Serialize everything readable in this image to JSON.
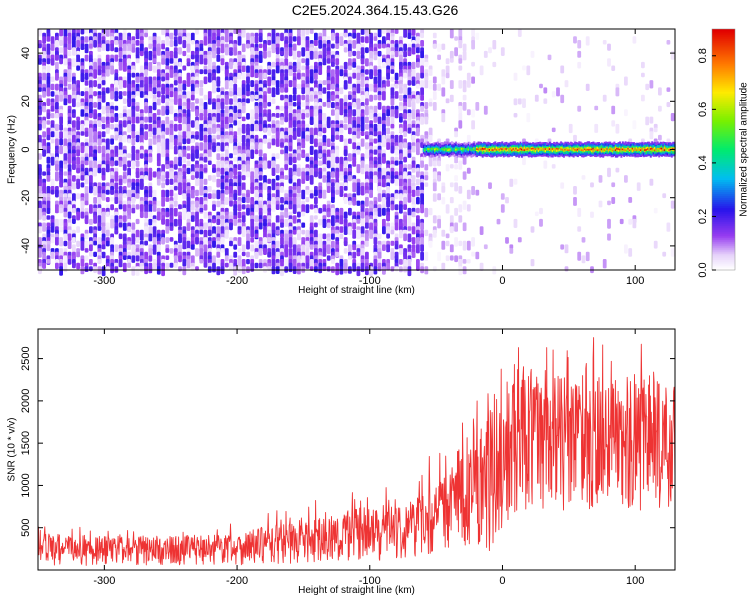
{
  "title": "C2E5.2024.364.15.43.G26",
  "colors": {
    "snr_line": "#ee3333",
    "spectrogram_noise": "#7a24e0",
    "axis": "#000000",
    "background": "#ffffff"
  },
  "chart_data": [
    {
      "type": "heatmap",
      "title": "C2E5.2024.364.15.43.G26",
      "xlabel": "Height of straight line (km)",
      "ylabel": "Frequency (Hz)",
      "xlim": [
        -350,
        130
      ],
      "ylim": [
        -50,
        50
      ],
      "x_ticks": [
        -300,
        -200,
        -100,
        0,
        100
      ],
      "x_tick_labels": [
        "-300",
        "-200",
        "-100",
        "0",
        "100"
      ],
      "y_ticks": [
        -40,
        -20,
        0,
        20,
        40
      ],
      "y_tick_labels": [
        "-40",
        "-20",
        "0",
        "20",
        "40"
      ],
      "colorbar": {
        "label": "Normalized spectral amplitude",
        "range": [
          0.0,
          0.9
        ],
        "ticks": [
          0.0,
          0.2,
          0.4,
          0.6,
          0.8
        ],
        "tick_labels": [
          "0.0",
          "0.2",
          "0.4",
          "0.6",
          "0.8"
        ],
        "colormap": "rainbow (white-violet-blue-cyan-green-yellow-red)"
      },
      "features": {
        "noise_region_x": [
          -350,
          -60
        ],
        "noise_amplitude_typical": 0.1,
        "signal_band_frequency_hz": 0,
        "signal_band_x": [
          -60,
          130
        ],
        "signal_band_halfwidth_hz": 3,
        "signal_peak_amplitude": 0.9
      },
      "grid": false
    },
    {
      "type": "line",
      "xlabel": "Height of straight line (km)",
      "ylabel": "SNR (10 * v/v)",
      "xlim": [
        -350,
        130
      ],
      "ylim": [
        0,
        2850
      ],
      "x_ticks": [
        -300,
        -200,
        -100,
        0,
        100
      ],
      "x_tick_labels": [
        "-300",
        "-200",
        "-100",
        "0",
        "100"
      ],
      "y_ticks": [
        500,
        1000,
        1500,
        2000,
        2500
      ],
      "y_tick_labels": [
        "500",
        "1000",
        "1500",
        "2000",
        "2500"
      ],
      "envelope": {
        "x": [
          -350,
          -300,
          -250,
          -200,
          -150,
          -100,
          -70,
          -50,
          -30,
          -10,
          0,
          20,
          50,
          80,
          100,
          130
        ],
        "y_low": [
          50,
          50,
          60,
          60,
          80,
          100,
          150,
          200,
          300,
          200,
          500,
          700,
          700,
          700,
          700,
          600
        ],
        "y_high": [
          450,
          400,
          400,
          450,
          600,
          750,
          850,
          1000,
          1500,
          1900,
          2200,
          2400,
          2300,
          2300,
          2300,
          2200
        ],
        "y_peak": [
          550,
          480,
          500,
          600,
          800,
          1000,
          1050,
          1500,
          1800,
          2300,
          2600,
          2830,
          2700,
          2780,
          2750,
          2600
        ]
      },
      "grid": false
    }
  ]
}
